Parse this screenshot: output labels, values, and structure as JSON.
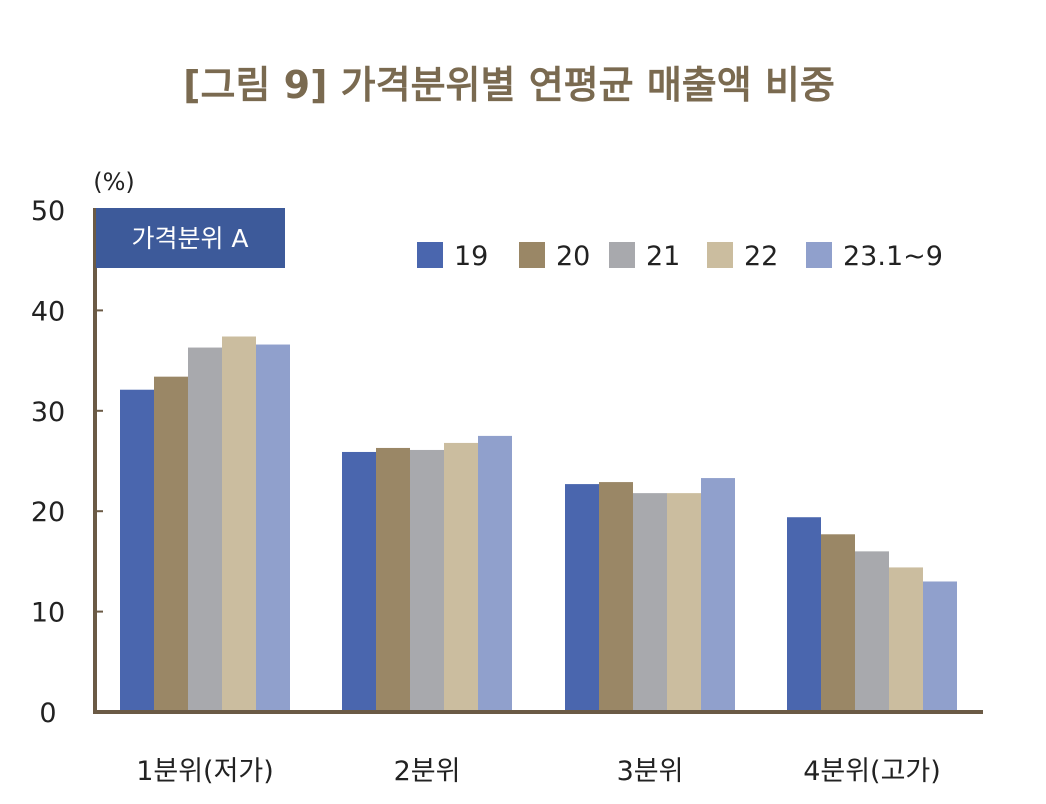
{
  "chart_data": {
    "type": "bar",
    "title": "[그림 9] 가격분위별 연평균 매출액 비중",
    "unit_label": "(%)",
    "panel_label": "가격분위 A",
    "categories": [
      "1분위(저가)",
      "2분위",
      "3분위",
      "4분위(고가)"
    ],
    "series": [
      {
        "name": "19",
        "color": "#4a66ae",
        "values": [
          32.1,
          25.9,
          22.7,
          19.4
        ]
      },
      {
        "name": "20",
        "color": "#9a8766",
        "values": [
          33.4,
          26.3,
          22.9,
          17.7
        ]
      },
      {
        "name": "21",
        "color": "#a8a9ad",
        "values": [
          36.3,
          26.1,
          21.8,
          16.0
        ]
      },
      {
        "name": "22",
        "color": "#cbbd9f",
        "values": [
          37.4,
          26.8,
          21.8,
          14.4
        ]
      },
      {
        "name": "23.1~9",
        "color": "#90a0cc",
        "values": [
          36.6,
          27.5,
          23.3,
          13.0
        ]
      }
    ],
    "ylim": [
      0,
      50
    ],
    "yticks": [
      0,
      10,
      20,
      30,
      40,
      50
    ],
    "legend_position": "top-right",
    "grid": false,
    "axis_color": "#6b5a45",
    "panel_color": "#3d5a9a"
  }
}
